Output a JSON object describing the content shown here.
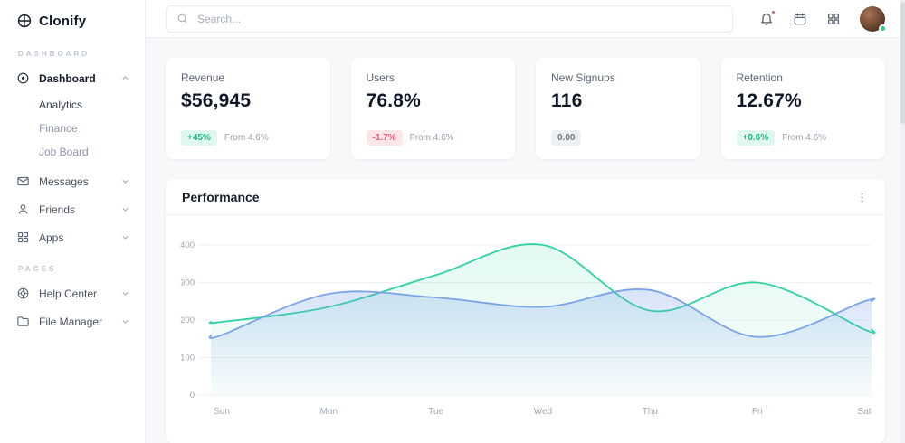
{
  "brand": {
    "name": "Clonify"
  },
  "topbar": {
    "search_placeholder": "Search..."
  },
  "sidebar": {
    "sections": [
      {
        "label": "DASHBOARD"
      },
      {
        "label": "PAGES"
      }
    ],
    "items": [
      {
        "label": "Dashboard"
      },
      {
        "label": "Analytics"
      },
      {
        "label": "Finance"
      },
      {
        "label": "Job Board"
      },
      {
        "label": "Messages"
      },
      {
        "label": "Friends"
      },
      {
        "label": "Apps"
      },
      {
        "label": "Help Center"
      },
      {
        "label": "File Manager"
      }
    ]
  },
  "stats": [
    {
      "title": "Revenue",
      "value": "$56,945",
      "badge": "+45%",
      "trend": "up",
      "note": "From 4.6%"
    },
    {
      "title": "Users",
      "value": "76.8%",
      "badge": "-1.7%",
      "trend": "down",
      "note": "From 4.6%"
    },
    {
      "title": "New Signups",
      "value": "116",
      "badge": "0.00",
      "trend": "flat",
      "note": ""
    },
    {
      "title": "Retention",
      "value": "12.67%",
      "badge": "+0.6%",
      "trend": "up",
      "note": "From 4.6%"
    }
  ],
  "performance": {
    "title": "Performance"
  },
  "chart_data": {
    "type": "area",
    "title": "Performance",
    "categories": [
      "Sun",
      "Mon",
      "Tue",
      "Wed",
      "Thu",
      "Fri",
      "Sat"
    ],
    "series": [
      {
        "name": "green-series",
        "color": "#2fd3a0",
        "values": [
          195,
          235,
          320,
          400,
          225,
          300,
          175
        ]
      },
      {
        "name": "blue-series",
        "color": "#7aa3e8",
        "values": [
          160,
          270,
          260,
          235,
          280,
          155,
          250
        ]
      }
    ],
    "ylim": [
      0,
      400
    ],
    "yticks": [
      0,
      100,
      200,
      300,
      400
    ],
    "xlabel": "",
    "ylabel": "",
    "grid": true,
    "legend_position": "none"
  },
  "colors": {
    "accent_green": "#14b885",
    "accent_red": "#f4516c",
    "line_green": "#2fd3a0",
    "line_blue": "#7aa3e8",
    "online_dot": "#2ecc8f"
  }
}
